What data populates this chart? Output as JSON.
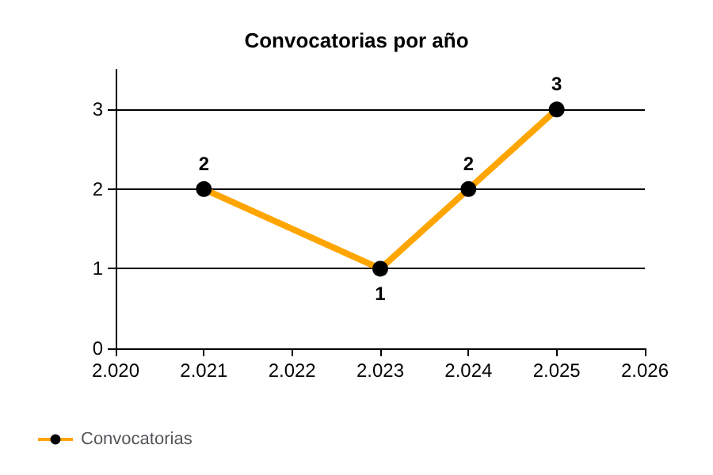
{
  "chart_data": {
    "type": "line",
    "title": "Convocatorias por año",
    "x": [
      2021,
      2023,
      2024,
      2025
    ],
    "series": [
      {
        "name": "Convocatorias",
        "color": "#ffa500",
        "values": [
          2,
          1,
          2,
          3
        ]
      }
    ],
    "xlim": [
      2020,
      2026
    ],
    "xticks": [
      {
        "value": 2020,
        "label": "2.020"
      },
      {
        "value": 2021,
        "label": "2.021"
      },
      {
        "value": 2022,
        "label": "2.022"
      },
      {
        "value": 2023,
        "label": "2.023"
      },
      {
        "value": 2024,
        "label": "2.024"
      },
      {
        "value": 2025,
        "label": "2.025"
      },
      {
        "value": 2026,
        "label": "2.026"
      }
    ],
    "ylim": [
      0,
      3.5
    ],
    "yticks": [
      0,
      1,
      2,
      3
    ],
    "grid": "y",
    "legend": "bottom left",
    "marker": "circle",
    "data_labels": true
  }
}
